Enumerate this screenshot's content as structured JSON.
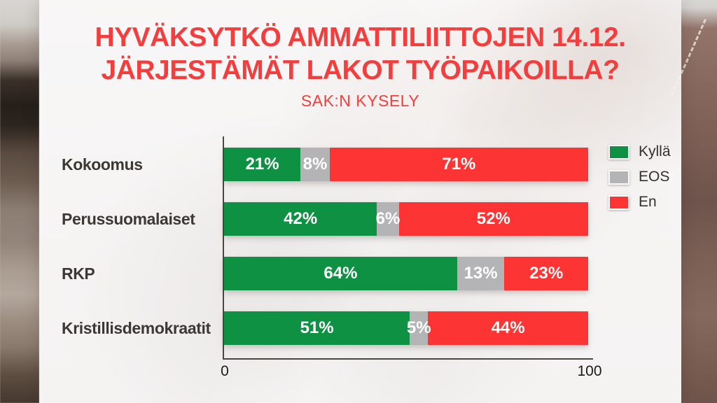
{
  "title": {
    "line1": "HYVÄKSYTKÖ AMMATTILIITTOJEN 14.12.",
    "line2": "JÄRJESTÄMÄT LAKOT TYÖPAIKOILLA?",
    "subtitle": "SAK:N KYSELY"
  },
  "chart_data": {
    "type": "bar",
    "orientation": "horizontal",
    "stacked": true,
    "title": "HYVÄKSYTKÖ AMMATTILIITTOJEN 14.12. JÄRJESTÄMÄT LAKOT TYÖPAIKOILLA?",
    "subtitle": "SAK:N KYSELY",
    "categories": [
      "Kokoomus",
      "Perussuomalaiset",
      "RKP",
      "Kristillisdemokraatit"
    ],
    "series": [
      {
        "name": "Kyllä",
        "key": "kylla",
        "color": "#0f9143",
        "values": [
          21,
          42,
          64,
          51
        ]
      },
      {
        "name": "EOS",
        "key": "eos",
        "color": "#b4b4b6",
        "values": [
          8,
          6,
          13,
          5
        ]
      },
      {
        "name": "En",
        "key": "en",
        "color": "#fc3433",
        "values": [
          71,
          52,
          23,
          44
        ]
      }
    ],
    "value_suffix": "%",
    "xlim": [
      0,
      100
    ],
    "x_ticks": [
      "0",
      "100"
    ],
    "legend_position": "right",
    "grid": false
  },
  "colors": {
    "title_red": "#f43e3e",
    "bar_green": "#0f9143",
    "bar_gray": "#b4b4b6",
    "bar_red": "#fc3433",
    "label_text": "#3c3835",
    "axis": "#4a4642"
  }
}
